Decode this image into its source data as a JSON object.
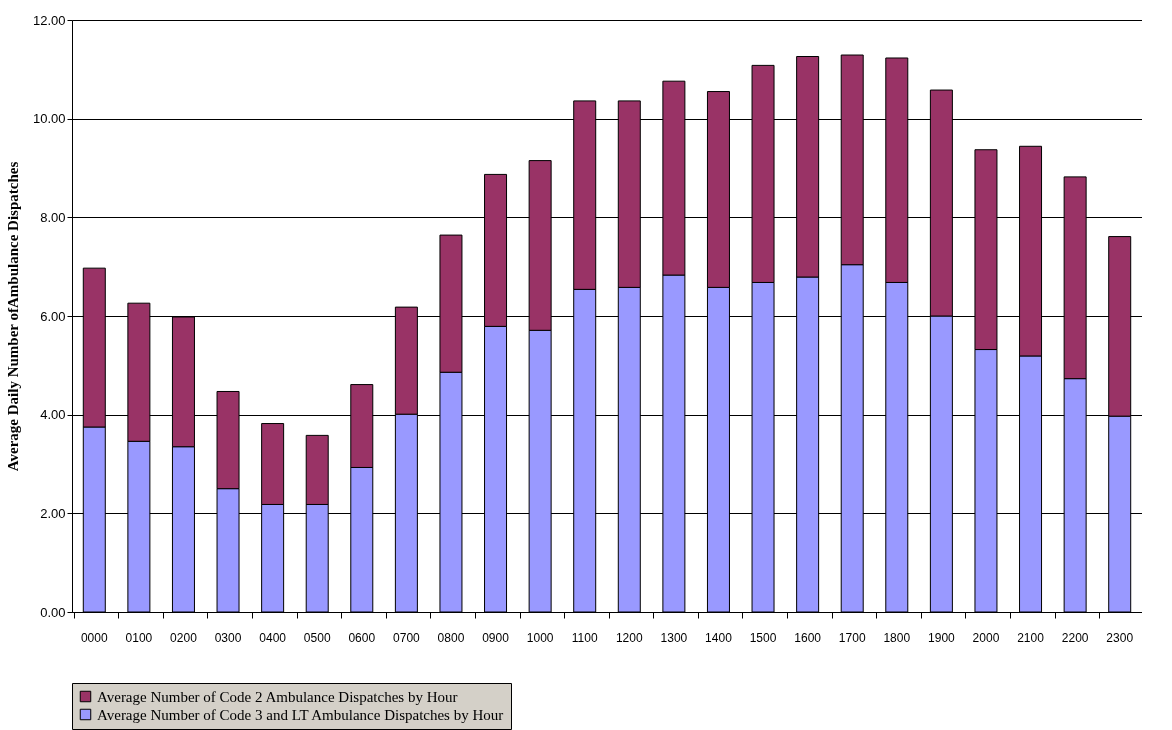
{
  "chart_data": {
    "type": "bar",
    "stacked": true,
    "ylabel": "Average Daily Number ofAmbulance Dispatches",
    "categories": [
      "0000",
      "0100",
      "0200",
      "0300",
      "0400",
      "0500",
      "0600",
      "0700",
      "0800",
      "0900",
      "1000",
      "1100",
      "1200",
      "1300",
      "1400",
      "1500",
      "1600",
      "1700",
      "1800",
      "1900",
      "2000",
      "2100",
      "2200",
      "2300"
    ],
    "series": [
      {
        "name": "Average Number of Code 3 and LT Ambulance Dispatches by Hour",
        "color": "#9999ff",
        "values": [
          3.75,
          3.46,
          3.35,
          2.5,
          2.18,
          2.18,
          2.93,
          4.01,
          4.86,
          5.79,
          5.71,
          6.54,
          6.58,
          6.83,
          6.58,
          6.68,
          6.79,
          7.04,
          6.68,
          6.0,
          5.32,
          5.19,
          4.73,
          3.97
        ]
      },
      {
        "name": "Average Number of Code 2 Ambulance Dispatches by Hour",
        "color": "#993366",
        "values": [
          3.22,
          2.8,
          2.63,
          1.97,
          1.64,
          1.4,
          1.68,
          2.17,
          2.78,
          3.08,
          3.44,
          3.82,
          3.78,
          3.93,
          3.97,
          4.4,
          4.47,
          4.25,
          4.55,
          4.58,
          4.05,
          4.25,
          4.09,
          3.64
        ]
      }
    ],
    "ylim": [
      0,
      12
    ],
    "yticks": [
      {
        "value": 0,
        "label": "0.00"
      },
      {
        "value": 2,
        "label": "2.00"
      },
      {
        "value": 4,
        "label": "4.00"
      },
      {
        "value": 6,
        "label": "6.00"
      },
      {
        "value": 8,
        "label": "8.00"
      },
      {
        "value": 10,
        "label": "10.00"
      },
      {
        "value": 12,
        "label": "12.00"
      }
    ],
    "grid": "y",
    "legend": "bottom"
  }
}
